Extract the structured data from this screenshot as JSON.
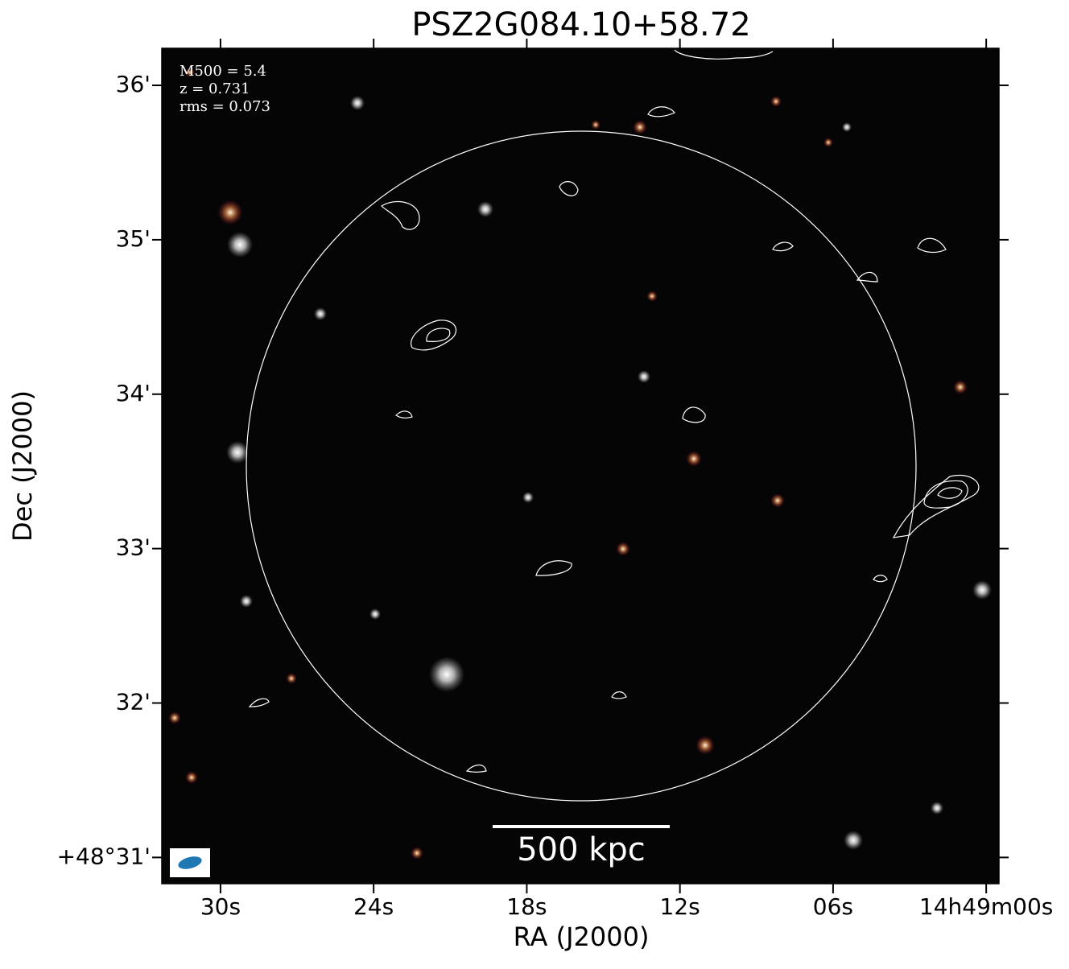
{
  "chart_data": {
    "type": "image",
    "title": "PSZ2G084.10+58.72",
    "xlabel": "RA (J2000)",
    "ylabel": "Dec (J2000)",
    "annotations": [
      "M500 = 5.4",
      "z = 0.731",
      "rms = 0.073"
    ],
    "scalebar_label": "500 kpc",
    "xlim": [
      32.3,
      -0.5
    ],
    "xticks": [
      {
        "value": 30,
        "label": "30s"
      },
      {
        "value": 24,
        "label": "24s"
      },
      {
        "value": 18,
        "label": "18s"
      },
      {
        "value": 12,
        "label": "12s"
      },
      {
        "value": 6,
        "label": "06s"
      },
      {
        "value": 0,
        "label": "14h49m00s"
      }
    ],
    "ylim": [
      30.83,
      36.24
    ],
    "yticks": [
      {
        "value": 36,
        "label": "36'"
      },
      {
        "value": 35,
        "label": "35'"
      },
      {
        "value": 34,
        "label": "34'"
      },
      {
        "value": 33,
        "label": "33'"
      },
      {
        "value": 32,
        "label": "32'"
      },
      {
        "value": 31,
        "label": "+48°31'"
      }
    ]
  }
}
